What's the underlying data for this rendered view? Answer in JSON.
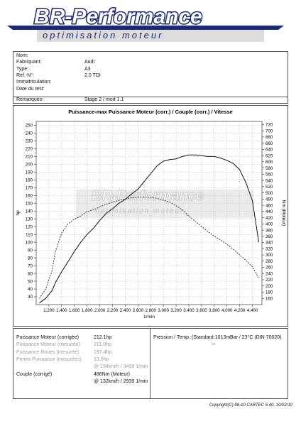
{
  "logo": {
    "brand": "BR-Performance",
    "tagline": "optimisation moteur"
  },
  "vehicle": {
    "rows": [
      {
        "label": "Nom:",
        "value": ""
      },
      {
        "label": "Fabriquant:",
        "value": "Audi"
      },
      {
        "label": "Type:",
        "value": "A3"
      },
      {
        "label": "Ref.-N°:",
        "value": "2.0 TDI"
      },
      {
        "label": "Immatriculation:",
        "value": ""
      },
      {
        "label": "Date du test:",
        "value": ""
      },
      {
        "label": "Remarques:",
        "value": "Stage 2 / mod 1.1"
      }
    ]
  },
  "chart_data": {
    "type": "line",
    "title": "Puissance-max Puissance Moteur (corr.) / Couple (corr.) / Vitesse",
    "xlabel": "1/min",
    "ylabel_left": "hp",
    "ylabel_right": "Nm (Moteur)",
    "x_ticks": [
      1200,
      1400,
      1600,
      1800,
      2000,
      2200,
      2400,
      2600,
      2800,
      3000,
      3200,
      3400,
      3600,
      3800,
      4000,
      4200,
      4400
    ],
    "x_tick_labels": [
      "1,200",
      "1,400",
      "1,600",
      "1,800",
      "2,000",
      "2,200",
      "2,400",
      "2,600",
      "2,800",
      "3,000",
      "3,200",
      "3,400",
      "3,600",
      "3,800",
      "4,000",
      "4,200",
      "4,400"
    ],
    "xlim": [
      1000,
      4550
    ],
    "ylim_left": [
      20,
      255
    ],
    "y_left_ticks": [
      30,
      40,
      50,
      60,
      70,
      80,
      90,
      100,
      110,
      120,
      130,
      140,
      150,
      160,
      170,
      180,
      190,
      200,
      210,
      220,
      230,
      240,
      250
    ],
    "ylim_right": [
      140,
      730
    ],
    "y_right_ticks": [
      160,
      180,
      200,
      220,
      240,
      260,
      280,
      300,
      320,
      340,
      360,
      380,
      400,
      420,
      440,
      460,
      480,
      500,
      520,
      540,
      560,
      580,
      600,
      620,
      640,
      660,
      680,
      700,
      720
    ],
    "grid": true,
    "series": [
      {
        "axis": "left",
        "style": "solid",
        "x": [
          1050,
          1150,
          1250,
          1300,
          1400,
          1500,
          1600,
          1700,
          1800,
          1900,
          2000,
          2100,
          2200,
          2300,
          2400,
          2500,
          2600,
          2700,
          2800,
          2900,
          3000,
          3100,
          3200,
          3300,
          3400,
          3500,
          3600,
          3700,
          3800,
          3900,
          4000,
          4100,
          4200,
          4300,
          4400,
          4500
        ],
        "y": [
          22,
          28,
          38,
          48,
          62,
          75,
          88,
          100,
          110,
          118,
          128,
          137,
          143,
          150,
          155,
          162,
          168,
          178,
          188,
          198,
          204,
          206,
          207,
          210,
          212,
          212,
          211,
          210,
          210,
          208,
          205,
          201,
          193,
          176,
          153,
          100
        ]
      },
      {
        "axis": "right",
        "style": "dashed",
        "x": [
          1050,
          1150,
          1250,
          1300,
          1400,
          1500,
          1600,
          1700,
          1800,
          1900,
          2000,
          2100,
          2200,
          2300,
          2400,
          2500,
          2600,
          2700,
          2800,
          2900,
          3000,
          3100,
          3200,
          3300,
          3400,
          3500,
          3600,
          3700,
          3800,
          3900,
          4000,
          4100,
          4200,
          4300,
          4400,
          4500
        ],
        "y": [
          160,
          190,
          250,
          310,
          370,
          400,
          415,
          425,
          440,
          445,
          455,
          463,
          470,
          476,
          480,
          484,
          486,
          486,
          485,
          482,
          476,
          470,
          458,
          445,
          425,
          408,
          392,
          375,
          360,
          348,
          334,
          318,
          300,
          282,
          262,
          225
        ]
      }
    ]
  },
  "results": {
    "left": [
      {
        "label": "Puissance Moteur (corrigée)",
        "value": "212.1hp",
        "muted": false
      },
      {
        "label": "Puissance Moteur (mesurée)",
        "value": "211.0hp",
        "muted": true
      },
      {
        "label": "Puissance Roues (mesurée)",
        "value": "197.4hp",
        "muted": true
      },
      {
        "label": "Pertes Puissance (mesurées)",
        "value": "13.6hp",
        "muted": true
      },
      {
        "label": "",
        "value": "@ 154km/h / 3410 1/min",
        "muted": true
      },
      {
        "label": "Couple (corrigé)",
        "value": "486Nm (Moteur)",
        "muted": false
      },
      {
        "label": "",
        "value": "@ 132km/h / 2939 1/min",
        "muted": false
      }
    ],
    "pressure": "Pression / Temp.:(Standard:1013mBar / 23°C   (DIN 70020)",
    "pressure_value": "--"
  },
  "footer": {
    "copyright": "Copyright(C) 98-10 CARTEC 5.40, 10/02/10"
  }
}
